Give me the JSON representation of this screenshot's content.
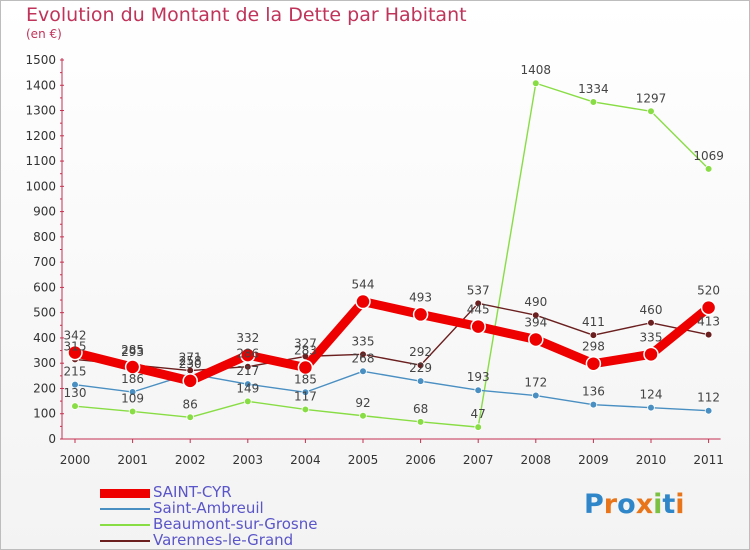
{
  "chart_data": {
    "type": "line",
    "title": "Evolution du Montant de la Dette par Habitant",
    "subtitle": "(en €)",
    "categories": [
      "2000",
      "2001",
      "2002",
      "2003",
      "2004",
      "2005",
      "2006",
      "2007",
      "2008",
      "2009",
      "2010",
      "2011"
    ],
    "ylim": [
      0,
      1500
    ],
    "yticks": [
      0,
      100,
      200,
      300,
      400,
      500,
      600,
      700,
      800,
      900,
      1000,
      1100,
      1200,
      1300,
      1400,
      1500
    ],
    "grid": false,
    "legend_position": "bottom-left",
    "series": [
      {
        "name": "SAINT-CYR",
        "color": "#ee0000",
        "values": [
          342,
          285,
          230,
          332,
          283,
          544,
          493,
          445,
          394,
          298,
          335,
          520
        ]
      },
      {
        "name": "Saint-Ambreuil",
        "color": "#4a8fc2",
        "values": [
          215,
          186,
          258,
          217,
          185,
          268,
          229,
          193,
          172,
          136,
          124,
          112
        ]
      },
      {
        "name": "Beaumont-sur-Grosne",
        "color": "#88dd44",
        "values": [
          130,
          109,
          86,
          149,
          117,
          92,
          68,
          47,
          1408,
          1334,
          1297,
          1069
        ]
      },
      {
        "name": "Varennes-le-Grand",
        "color": "#6b1f1f",
        "values": [
          315,
          293,
          271,
          286,
          327,
          335,
          292,
          537,
          490,
          411,
          460,
          413
        ]
      }
    ]
  },
  "logo": {
    "text": "Proxiti",
    "letters": [
      "P",
      "r",
      "o",
      "x",
      "i",
      "t",
      "i"
    ],
    "colors": [
      "#2f86c8",
      "#e8751a",
      "#2f86c8",
      "#e8751a",
      "#7cc142",
      "#2f86c8",
      "#e8751a"
    ]
  }
}
